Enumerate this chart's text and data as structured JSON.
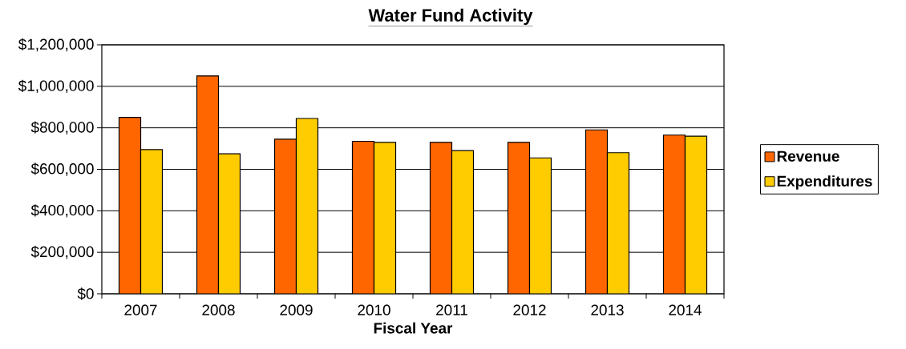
{
  "chart_data": {
    "type": "bar",
    "title": "Water Fund Activity",
    "xlabel": "Fiscal Year",
    "categories": [
      "2007",
      "2008",
      "2009",
      "2010",
      "2011",
      "2012",
      "2013",
      "2014"
    ],
    "series": [
      {
        "name": "Revenue",
        "color": "#ff6600",
        "values": [
          850000,
          1050000,
          745000,
          735000,
          730000,
          730000,
          790000,
          765000
        ]
      },
      {
        "name": "Expenditures",
        "color": "#ffcc00",
        "values": [
          695000,
          675000,
          845000,
          730000,
          690000,
          655000,
          680000,
          760000
        ]
      }
    ],
    "ylim": [
      0,
      1200000
    ],
    "yticks": [
      {
        "value": 0,
        "label": "$0"
      },
      {
        "value": 200000,
        "label": "$200,000"
      },
      {
        "value": 400000,
        "label": "$400,000"
      },
      {
        "value": 600000,
        "label": "$600,000"
      },
      {
        "value": 800000,
        "label": "$800,000"
      },
      {
        "value": 1000000,
        "label": "$1,000,000"
      },
      {
        "value": 1200000,
        "label": "$1,200,000"
      }
    ],
    "grid": "y",
    "legend": "right"
  }
}
